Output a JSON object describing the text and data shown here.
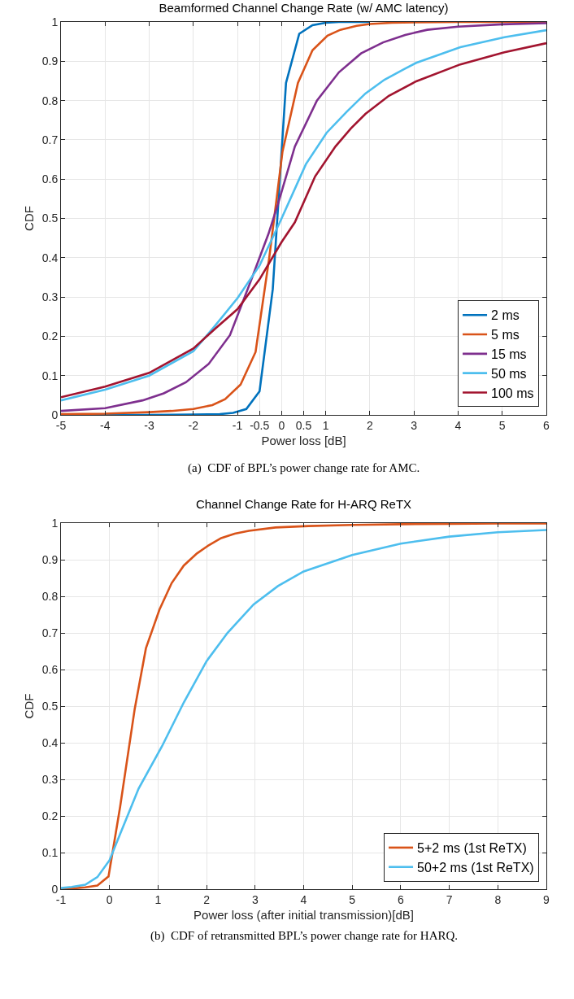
{
  "chart_data": [
    {
      "type": "line",
      "title": "Beamformed Channel Change Rate (w/ AMC latency)",
      "xlabel": "Power loss [dB]",
      "ylabel": "CDF",
      "annotations": [
        "(a)  CDF of BPL’s power change rate for AMC."
      ],
      "xlim": [
        -5,
        6
      ],
      "xticks": [
        -5,
        -4,
        -3,
        -2,
        -1,
        -0.5,
        0,
        0.5,
        1,
        2,
        3,
        4,
        5,
        6
      ],
      "ylim": [
        0,
        1
      ],
      "yticks": [
        0,
        0.1,
        0.2,
        0.3,
        0.4,
        0.5,
        0.6,
        0.7,
        0.8,
        0.9,
        1
      ],
      "grid": true,
      "legend": "bottom right",
      "series": [
        {
          "name": "2 ms",
          "color": "#0072bd",
          "x": [
            -5,
            -4,
            -3,
            -2,
            -1.4,
            -1.1,
            -0.8,
            -0.5,
            -0.2,
            0.1,
            0.4,
            0.7,
            1,
            1.3,
            2
          ],
          "values": [
            0,
            0,
            0,
            0.001,
            0.002,
            0.005,
            0.015,
            0.06,
            0.32,
            0.845,
            0.97,
            0.992,
            0.998,
            1,
            1
          ]
        },
        {
          "name": "5 ms",
          "color": "#d95319",
          "x": [
            -5,
            -4,
            -3,
            -2.5,
            -2,
            -1.57,
            -1.28,
            -0.93,
            -0.59,
            -0.28,
            0.02,
            0.37,
            0.7,
            1.04,
            1.33,
            1.7,
            2,
            2.5,
            3,
            4,
            5,
            6
          ],
          "values": [
            0.002,
            0.003,
            0.007,
            0.01,
            0.015,
            0.025,
            0.04,
            0.077,
            0.16,
            0.4,
            0.67,
            0.845,
            0.928,
            0.965,
            0.98,
            0.99,
            0.995,
            0.998,
            0.999,
            1,
            1,
            1
          ]
        },
        {
          "name": "15 ms",
          "color": "#7e2f8e",
          "x": [
            -5,
            -4,
            -3.15,
            -2.67,
            -2.17,
            -1.65,
            -1.17,
            -0.7,
            -0.3,
            -0.1,
            0.3,
            0.8,
            1.3,
            1.8,
            2.3,
            2.8,
            3.3,
            4,
            5,
            6
          ],
          "values": [
            0.01,
            0.017,
            0.037,
            0.055,
            0.083,
            0.13,
            0.203,
            0.34,
            0.46,
            0.53,
            0.683,
            0.8,
            0.872,
            0.92,
            0.948,
            0.967,
            0.98,
            0.988,
            0.994,
            0.997
          ]
        },
        {
          "name": "50 ms",
          "color": "#4dbeee",
          "x": [
            -5,
            -4,
            -3,
            -2,
            -1.5,
            -1,
            -0.5,
            0,
            0.55,
            1.02,
            1.48,
            1.9,
            2.33,
            2.78,
            3.05,
            4.05,
            5.05,
            6
          ],
          "values": [
            0.037,
            0.064,
            0.1,
            0.162,
            0.228,
            0.297,
            0.38,
            0.5,
            0.638,
            0.718,
            0.772,
            0.818,
            0.853,
            0.88,
            0.896,
            0.936,
            0.961,
            0.979
          ]
        },
        {
          "name": "100 ms",
          "color": "#a2142f",
          "x": [
            -5,
            -4,
            -3,
            -2,
            -1.5,
            -1,
            -0.5,
            0,
            0.3,
            0.76,
            1.22,
            1.57,
            1.9,
            2.43,
            3.05,
            4.05,
            5.05,
            6
          ],
          "values": [
            0.045,
            0.072,
            0.107,
            0.169,
            0.22,
            0.269,
            0.345,
            0.44,
            0.49,
            0.607,
            0.683,
            0.729,
            0.766,
            0.812,
            0.849,
            0.892,
            0.923,
            0.946
          ]
        }
      ]
    },
    {
      "type": "line",
      "title": "Channel Change Rate for H-ARQ ReTX",
      "xlabel": "Power loss (after initial transmission)[dB]",
      "ylabel": "CDF",
      "annotations": [
        "(b)  CDF of retransmitted BPL’s power change rate for HARQ."
      ],
      "xlim": [
        -1,
        9
      ],
      "xticks": [
        -1,
        0,
        1,
        2,
        3,
        4,
        5,
        6,
        7,
        8,
        9
      ],
      "ylim": [
        0,
        1
      ],
      "yticks": [
        0,
        0.1,
        0.2,
        0.3,
        0.4,
        0.5,
        0.6,
        0.7,
        0.8,
        0.9,
        1
      ],
      "grid": true,
      "legend": "bottom right",
      "series": [
        {
          "name": "5+2 ms (1st ReTX)",
          "color": "#d95319",
          "x": [
            -1,
            -0.75,
            -0.5,
            -0.25,
            -0.02,
            0.22,
            0.52,
            0.75,
            1.03,
            1.28,
            1.53,
            1.8,
            2.05,
            2.3,
            2.58,
            2.87,
            3.42,
            4.1,
            5,
            6,
            7,
            8,
            9
          ],
          "values": [
            0,
            0.002,
            0.005,
            0.01,
            0.035,
            0.226,
            0.493,
            0.658,
            0.764,
            0.836,
            0.884,
            0.917,
            0.94,
            0.959,
            0.971,
            0.979,
            0.988,
            0.992,
            0.995,
            0.997,
            0.998,
            0.999,
            0.999
          ]
        },
        {
          "name": "50+2 ms (1st ReTX)",
          "color": "#4dbeee",
          "x": [
            -1,
            -0.78,
            -0.5,
            -0.25,
            0,
            0.22,
            0.6,
            1.08,
            1.53,
            2,
            2.43,
            2.97,
            3.47,
            4,
            5,
            6,
            7,
            8,
            9
          ],
          "values": [
            0.003,
            0.006,
            0.012,
            0.033,
            0.079,
            0.151,
            0.275,
            0.39,
            0.51,
            0.623,
            0.7,
            0.778,
            0.828,
            0.868,
            0.913,
            0.944,
            0.963,
            0.975,
            0.981
          ]
        }
      ]
    }
  ]
}
